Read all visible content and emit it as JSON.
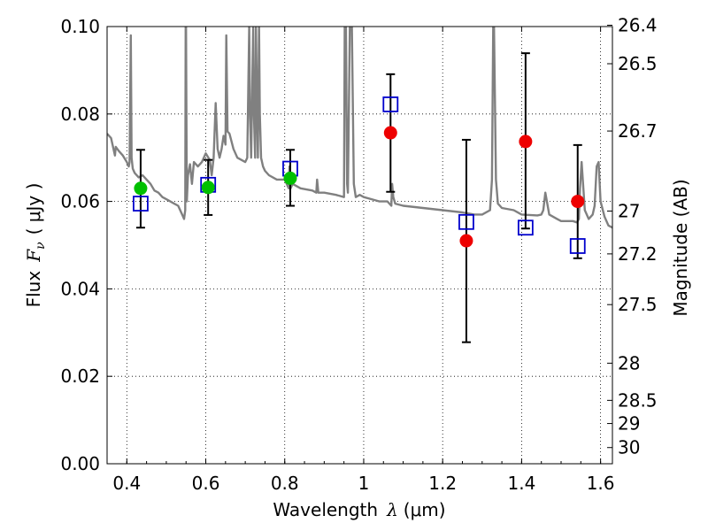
{
  "chart_data": {
    "type": "scatter",
    "title": "",
    "xlabel": "Wavelength",
    "xlabel_symbol": "λ",
    "xlabel_unit": "(μm)",
    "ylabel": "Flux",
    "ylabel_symbol": "F",
    "ylabel_symbol_sub": "ν",
    "ylabel_unit": "( μJy )",
    "y2label": "Magnitude (AB)",
    "xlim": [
      0.35,
      1.63
    ],
    "ylim": [
      0.0,
      0.1
    ],
    "grid": true,
    "x_ticks": [
      0.4,
      0.6,
      0.8,
      1.0,
      1.2,
      1.4,
      1.6
    ],
    "x_tick_labels": [
      "0.4",
      "0.6",
      "0.8",
      "1",
      "1.2",
      "1.4",
      "1.6"
    ],
    "y_ticks": [
      0.0,
      0.02,
      0.04,
      0.06,
      0.08,
      0.1
    ],
    "y_tick_labels": [
      "0.00",
      "0.02",
      "0.04",
      "0.06",
      "0.08",
      "0.10"
    ],
    "y2_ticks": [
      {
        "label": "26.4",
        "flux": 0.1003
      },
      {
        "label": "26.5",
        "flux": 0.0915
      },
      {
        "label": "26.7",
        "flux": 0.0761
      },
      {
        "label": "27",
        "flux": 0.0578
      },
      {
        "label": "27.2",
        "flux": 0.048
      },
      {
        "label": "27.5",
        "flux": 0.0364
      },
      {
        "label": "28",
        "flux": 0.023
      },
      {
        "label": "28.5",
        "flux": 0.0145
      },
      {
        "label": "29",
        "flux": 0.0092
      },
      {
        "label": "30",
        "flux": 0.0037
      }
    ],
    "series": [
      {
        "kind": "model-spectrum",
        "color": "#808080",
        "x": [
          0.35,
          0.36,
          0.37,
          0.372,
          0.38,
          0.39,
          0.4,
          0.405,
          0.407,
          0.41,
          0.412,
          0.415,
          0.42,
          0.43,
          0.44,
          0.45,
          0.46,
          0.47,
          0.48,
          0.49,
          0.5,
          0.51,
          0.52,
          0.53,
          0.54,
          0.545,
          0.548,
          0.549,
          0.55,
          0.552,
          0.555,
          0.56,
          0.565,
          0.57,
          0.58,
          0.59,
          0.6,
          0.61,
          0.615,
          0.62,
          0.625,
          0.63,
          0.635,
          0.64,
          0.645,
          0.65,
          0.652,
          0.655,
          0.66,
          0.67,
          0.68,
          0.7,
          0.705,
          0.708,
          0.71,
          0.712,
          0.715,
          0.72,
          0.722,
          0.725,
          0.727,
          0.73,
          0.732,
          0.735,
          0.737,
          0.74,
          0.745,
          0.75,
          0.76,
          0.78,
          0.8,
          0.81,
          0.812,
          0.815,
          0.82,
          0.84,
          0.87,
          0.88,
          0.882,
          0.885,
          0.9,
          0.93,
          0.95,
          0.952,
          0.955,
          0.958,
          0.96,
          0.965,
          0.97,
          0.975,
          0.98,
          0.99,
          1.0,
          1.02,
          1.04,
          1.06,
          1.07,
          1.072,
          1.075,
          1.08,
          1.1,
          1.15,
          1.2,
          1.25,
          1.28,
          1.3,
          1.32,
          1.325,
          1.328,
          1.33,
          1.335,
          1.34,
          1.35,
          1.38,
          1.4,
          1.44,
          1.45,
          1.455,
          1.46,
          1.47,
          1.49,
          1.5,
          1.53,
          1.54,
          1.545,
          1.548,
          1.552,
          1.56,
          1.57,
          1.58,
          1.585,
          1.59,
          1.595,
          1.6,
          1.61,
          1.62,
          1.63
        ],
        "y": [
          0.0755,
          0.0745,
          0.0705,
          0.0725,
          0.0715,
          0.0705,
          0.069,
          0.068,
          0.069,
          0.098,
          0.07,
          0.0675,
          0.0665,
          0.0655,
          0.066,
          0.065,
          0.064,
          0.0625,
          0.062,
          0.061,
          0.0605,
          0.06,
          0.0595,
          0.059,
          0.057,
          0.056,
          0.058,
          0.1005,
          0.1005,
          0.06,
          0.066,
          0.0685,
          0.064,
          0.069,
          0.068,
          0.069,
          0.071,
          0.0695,
          0.066,
          0.07,
          0.0825,
          0.072,
          0.07,
          0.072,
          0.075,
          0.073,
          0.098,
          0.076,
          0.0755,
          0.072,
          0.07,
          0.069,
          0.07,
          0.088,
          0.1005,
          0.08,
          0.07,
          0.1005,
          0.08,
          0.07,
          0.1005,
          0.08,
          0.07,
          0.1005,
          0.08,
          0.07,
          0.068,
          0.067,
          0.066,
          0.065,
          0.065,
          0.063,
          0.068,
          0.063,
          0.064,
          0.063,
          0.0625,
          0.062,
          0.065,
          0.062,
          0.062,
          0.0615,
          0.061,
          0.1005,
          0.1005,
          0.064,
          0.062,
          0.1005,
          0.1005,
          0.064,
          0.061,
          0.0615,
          0.061,
          0.0605,
          0.06,
          0.06,
          0.059,
          0.064,
          0.061,
          0.0595,
          0.059,
          0.0585,
          0.058,
          0.0575,
          0.057,
          0.057,
          0.058,
          0.065,
          0.1005,
          0.1005,
          0.065,
          0.0595,
          0.0585,
          0.058,
          0.057,
          0.0568,
          0.057,
          0.058,
          0.062,
          0.057,
          0.056,
          0.0555,
          0.0555,
          0.0552,
          0.056,
          0.063,
          0.069,
          0.058,
          0.056,
          0.057,
          0.059,
          0.068,
          0.069,
          0.06,
          0.0565,
          0.0545,
          0.054
        ]
      },
      {
        "kind": "model-photometry",
        "marker": "open-square",
        "color": "#0000cc",
        "x": [
          0.435,
          0.606,
          0.814,
          1.068,
          1.26,
          1.41,
          1.542
        ],
        "y": [
          0.0595,
          0.0638,
          0.0675,
          0.0822,
          0.0553,
          0.054,
          0.0498
        ]
      },
      {
        "kind": "observed-detection",
        "marker": "filled-circle",
        "color": "#00c000",
        "x": [
          0.435,
          0.606,
          0.814
        ],
        "y": [
          0.063,
          0.0632,
          0.0653
        ]
      },
      {
        "kind": "observed-detection",
        "marker": "filled-circle",
        "color": "#ee0000",
        "x": [
          1.068,
          1.26,
          1.41,
          1.542
        ],
        "y": [
          0.0757,
          0.051,
          0.0737,
          0.06
        ]
      },
      {
        "kind": "error-bars",
        "color": "#000000",
        "points": [
          {
            "x": 0.435,
            "low": 0.054,
            "high": 0.0718
          },
          {
            "x": 0.606,
            "low": 0.0569,
            "high": 0.0695
          },
          {
            "x": 0.814,
            "low": 0.059,
            "high": 0.0718
          },
          {
            "x": 1.068,
            "low": 0.0622,
            "high": 0.0891
          },
          {
            "x": 1.26,
            "low": 0.0278,
            "high": 0.0741
          },
          {
            "x": 1.41,
            "low": 0.0538,
            "high": 0.0939
          },
          {
            "x": 1.542,
            "low": 0.047,
            "high": 0.0729
          }
        ]
      }
    ]
  }
}
